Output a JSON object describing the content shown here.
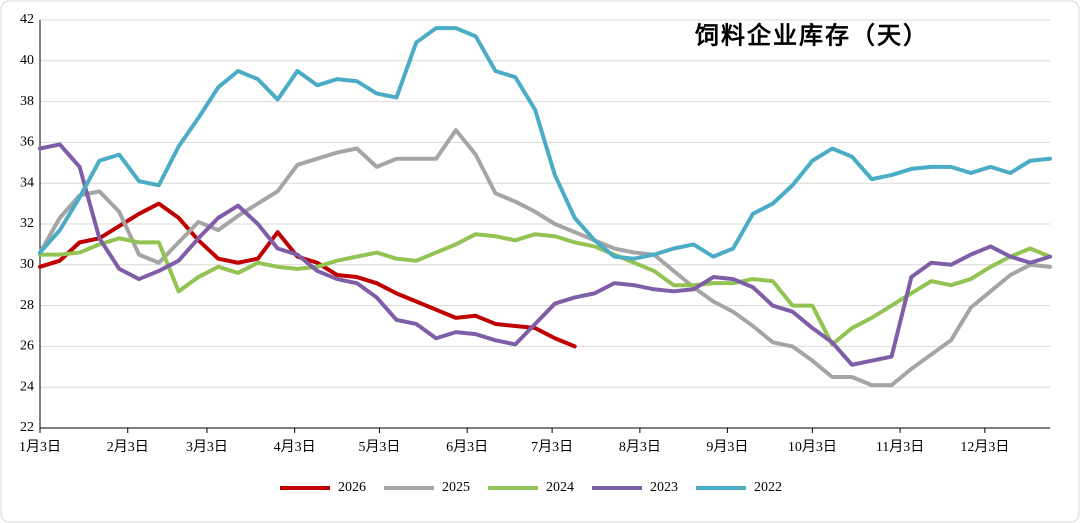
{
  "chart_data": {
    "type": "line",
    "title": "饲料企业库存（天）",
    "xlim": [
      0,
      51
    ],
    "xticks": [
      {
        "value": 0,
        "label": "1月3日"
      },
      {
        "value": 4.43,
        "label": "2月3日"
      },
      {
        "value": 8.43,
        "label": "3月3日"
      },
      {
        "value": 12.86,
        "label": "4月3日"
      },
      {
        "value": 17.14,
        "label": "5月3日"
      },
      {
        "value": 21.57,
        "label": "6月3日"
      },
      {
        "value": 25.86,
        "label": "7月3日"
      },
      {
        "value": 30.29,
        "label": "8月3日"
      },
      {
        "value": 34.71,
        "label": "9月3日"
      },
      {
        "value": 39,
        "label": "10月3日"
      },
      {
        "value": 43.43,
        "label": "11月3日"
      },
      {
        "value": 47.71,
        "label": "12月3日"
      }
    ],
    "ylim": [
      22,
      42
    ],
    "yticks": [
      22,
      24,
      26,
      28,
      30,
      32,
      34,
      36,
      38,
      40,
      42
    ],
    "grid": true,
    "legend": "bottom",
    "series": [
      {
        "name": "2026",
        "color": "#c00000",
        "values": [
          29.9,
          30.2,
          31.1,
          31.3,
          31.9,
          32.5,
          33.0,
          32.3,
          31.2,
          30.3,
          30.1,
          30.3,
          31.6,
          30.4,
          30.1,
          29.5,
          29.4,
          29.1,
          28.6,
          28.2,
          27.8,
          27.4,
          27.5,
          27.1,
          27.0,
          26.9,
          26.4,
          26.0,
          null,
          null,
          null,
          null,
          null,
          null,
          null,
          null,
          null,
          null,
          null,
          null,
          null,
          null,
          null,
          null,
          null,
          null,
          null,
          null,
          null,
          null,
          null,
          null
        ]
      },
      {
        "name": "2025",
        "color": "#a5a5a5",
        "values": [
          30.6,
          32.3,
          33.4,
          33.6,
          32.6,
          30.5,
          30.1,
          31.1,
          32.1,
          31.7,
          32.4,
          33.0,
          33.6,
          34.9,
          35.2,
          35.5,
          35.7,
          34.8,
          35.2,
          35.2,
          35.2,
          36.6,
          35.4,
          33.5,
          33.1,
          32.6,
          32.0,
          31.6,
          31.2,
          30.8,
          30.6,
          30.5,
          29.7,
          28.9,
          28.2,
          27.7,
          27.0,
          26.2,
          26.0,
          25.3,
          24.5,
          24.5,
          24.1,
          24.1,
          24.9,
          25.6,
          26.3,
          27.9,
          28.7,
          29.5,
          30.0,
          29.9
        ]
      },
      {
        "name": "2024",
        "color": "#92c353",
        "values": [
          30.5,
          30.5,
          30.6,
          31.0,
          31.3,
          31.1,
          31.1,
          28.7,
          29.4,
          29.9,
          29.6,
          30.1,
          29.9,
          29.8,
          29.9,
          30.2,
          30.4,
          30.6,
          30.3,
          30.2,
          30.6,
          31.0,
          31.5,
          31.4,
          31.2,
          31.5,
          31.4,
          31.1,
          30.9,
          30.5,
          30.1,
          29.7,
          29.0,
          29.0,
          29.1,
          29.1,
          29.3,
          29.2,
          28.0,
          28.0,
          26.1,
          26.9,
          27.4,
          28.0,
          28.6,
          29.2,
          29.0,
          29.3,
          29.9,
          30.4,
          30.8,
          30.4
        ]
      },
      {
        "name": "2023",
        "color": "#7f5ea8",
        "values": [
          35.7,
          35.9,
          34.8,
          31.3,
          29.8,
          29.3,
          29.7,
          30.2,
          31.3,
          32.3,
          32.9,
          32.0,
          30.8,
          30.5,
          29.7,
          29.3,
          29.1,
          28.4,
          27.3,
          27.1,
          26.4,
          26.7,
          26.6,
          26.3,
          26.1,
          27.1,
          28.1,
          28.4,
          28.6,
          29.1,
          29.0,
          28.8,
          28.7,
          28.8,
          29.4,
          29.3,
          28.9,
          28.0,
          27.7,
          26.9,
          26.2,
          25.1,
          25.3,
          25.5,
          29.4,
          30.1,
          30.0,
          30.5,
          30.9,
          30.4,
          30.1,
          30.4
        ]
      },
      {
        "name": "2022",
        "color": "#4bacc6",
        "values": [
          30.6,
          31.7,
          33.3,
          35.1,
          35.4,
          34.1,
          33.9,
          35.8,
          37.2,
          38.7,
          39.5,
          39.1,
          38.1,
          39.5,
          38.8,
          39.1,
          39.0,
          38.4,
          38.2,
          40.9,
          41.6,
          41.6,
          41.2,
          39.5,
          39.2,
          37.6,
          34.4,
          32.3,
          31.2,
          30.4,
          30.3,
          30.5,
          30.8,
          31.0,
          30.4,
          30.8,
          32.5,
          33.0,
          33.9,
          35.1,
          35.7,
          35.3,
          34.2,
          34.4,
          34.7,
          34.8,
          34.8,
          34.5,
          34.8,
          34.5,
          35.1,
          35.2
        ]
      }
    ]
  }
}
